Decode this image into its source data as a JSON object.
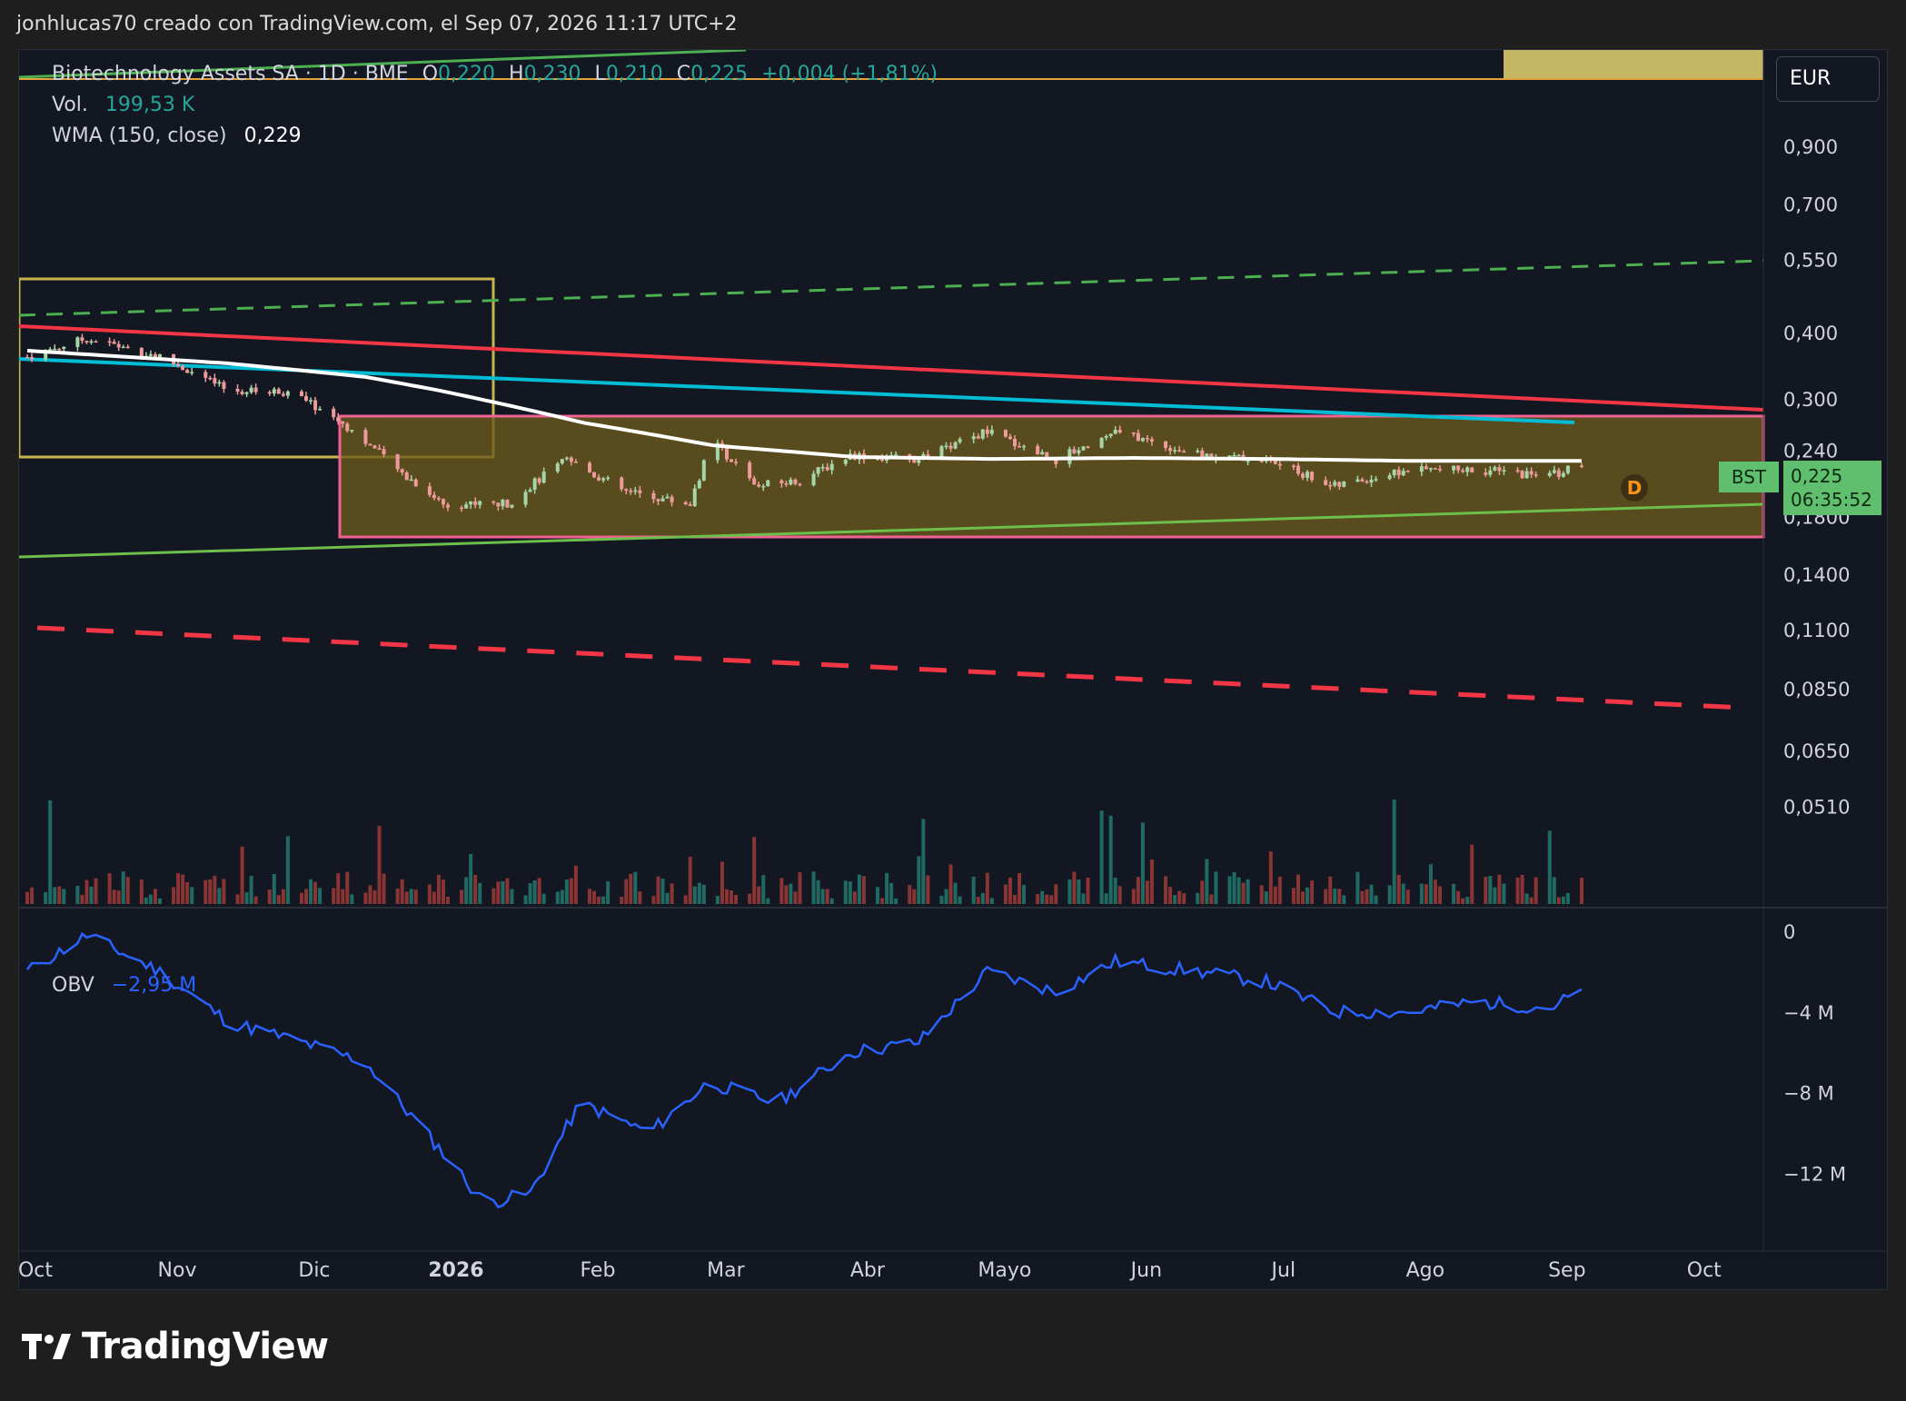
{
  "header": {
    "attribution": "jonhlucas70 creado con TradingView.com, el Sep 07, 2026 11:17 UTC+2"
  },
  "legend": {
    "symbol_line": "Biotechnology Assets SA · 1D · BME",
    "open_label": "O",
    "open": "0,220",
    "high_label": "H",
    "high": "0,230",
    "low_label": "L",
    "low": "0,210",
    "close_label": "C",
    "close": "0,225",
    "change": "+0,004 (+1,81%)",
    "vol_label": "Vol.",
    "vol_value": "199,53 K",
    "wma_label": "WMA (150, close)",
    "wma_value": "0,229"
  },
  "currency": "EUR",
  "price_tag": {
    "symbol": "BST",
    "price": "0,225",
    "countdown": "06:35:52"
  },
  "badge": "D",
  "obv": {
    "label": "OBV",
    "value": "−2,95 M"
  },
  "colors": {
    "up": "#26a69a",
    "down": "#ef5350",
    "candle_up": "#a5d6a7",
    "candle_down": "#ef9a9a",
    "wma": "#ffffff",
    "red_line": "#f23645",
    "cyan_line": "#00bcd4",
    "green_line": "#6cbf4a",
    "dashed_green": "#4caf50",
    "dashed_red": "#f23645",
    "yellow_box": "#c8b44a",
    "range_box_fill": "#6b5a1e",
    "range_box_border": "#f06292",
    "obv": "#2962ff",
    "highlight_bar": "#d8c86a"
  },
  "branding": "TradingView",
  "chart_data": {
    "type": "candlestick",
    "title": "Biotechnology Assets SA · 1D · BME",
    "y_scale": "log",
    "y_ticks": [
      "0,900",
      "0,700",
      "0,550",
      "0,400",
      "0,300",
      "0,240",
      "0,1800",
      "0,1400",
      "0,1100",
      "0,0850",
      "0,0650",
      "0,0510"
    ],
    "x_ticks": [
      "Oct",
      "Nov",
      "Dic",
      "2026",
      "Feb",
      "Mar",
      "Abr",
      "Mayo",
      "Jun",
      "Jul",
      "Ago",
      "Sep",
      "Oct"
    ],
    "close_series_approx": [
      {
        "date": "2025-10-02",
        "close": 0.36
      },
      {
        "date": "2025-10-15",
        "close": 0.39
      },
      {
        "date": "2025-10-31",
        "close": 0.36
      },
      {
        "date": "2025-11-15",
        "close": 0.31
      },
      {
        "date": "2025-11-28",
        "close": 0.31
      },
      {
        "date": "2025-12-10",
        "close": 0.27
      },
      {
        "date": "2025-12-22",
        "close": 0.22
      },
      {
        "date": "2026-01-01",
        "close": 0.19
      },
      {
        "date": "2026-01-15",
        "close": 0.19
      },
      {
        "date": "2026-01-28",
        "close": 0.23
      },
      {
        "date": "2026-02-10",
        "close": 0.2
      },
      {
        "date": "2026-02-24",
        "close": 0.19
      },
      {
        "date": "2026-03-01",
        "close": 0.25
      },
      {
        "date": "2026-03-10",
        "close": 0.205
      },
      {
        "date": "2026-03-20",
        "close": 0.21
      },
      {
        "date": "2026-03-31",
        "close": 0.235
      },
      {
        "date": "2026-04-15",
        "close": 0.23
      },
      {
        "date": "2026-04-30",
        "close": 0.26
      },
      {
        "date": "2026-05-15",
        "close": 0.23
      },
      {
        "date": "2026-05-28",
        "close": 0.26
      },
      {
        "date": "2026-06-15",
        "close": 0.235
      },
      {
        "date": "2026-06-30",
        "close": 0.23
      },
      {
        "date": "2026-07-15",
        "close": 0.205
      },
      {
        "date": "2026-07-31",
        "close": 0.22
      },
      {
        "date": "2026-08-15",
        "close": 0.22
      },
      {
        "date": "2026-08-31",
        "close": 0.215
      },
      {
        "date": "2026-09-07",
        "close": 0.225
      }
    ],
    "wma_series_approx": [
      {
        "date": "2025-10-02",
        "value": 0.37
      },
      {
        "date": "2025-11-15",
        "value": 0.35
      },
      {
        "date": "2025-12-15",
        "value": 0.33
      },
      {
        "date": "2026-01-01",
        "value": 0.31
      },
      {
        "date": "2026-02-01",
        "value": 0.27
      },
      {
        "date": "2026-03-01",
        "value": 0.245
      },
      {
        "date": "2026-04-01",
        "value": 0.233
      },
      {
        "date": "2026-05-01",
        "value": 0.231
      },
      {
        "date": "2026-06-01",
        "value": 0.232
      },
      {
        "date": "2026-07-01",
        "value": 0.231
      },
      {
        "date": "2026-08-01",
        "value": 0.229
      },
      {
        "date": "2026-09-07",
        "value": 0.229
      }
    ],
    "obv_ticks": [
      "0",
      "−4 M",
      "−8 M",
      "−12 M"
    ],
    "obv_series_approx_millions": [
      {
        "date": "2025-10-02",
        "value": -2.0
      },
      {
        "date": "2025-10-15",
        "value": -0.2
      },
      {
        "date": "2025-10-31",
        "value": -2.0
      },
      {
        "date": "2025-11-15",
        "value": -4.5
      },
      {
        "date": "2025-12-01",
        "value": -5.5
      },
      {
        "date": "2025-12-15",
        "value": -6.5
      },
      {
        "date": "2026-01-01",
        "value": -11.0
      },
      {
        "date": "2026-01-10",
        "value": -13.5
      },
      {
        "date": "2026-01-20",
        "value": -13.0
      },
      {
        "date": "2026-01-31",
        "value": -8.5
      },
      {
        "date": "2026-02-15",
        "value": -10.0
      },
      {
        "date": "2026-02-28",
        "value": -7.5
      },
      {
        "date": "2026-03-15",
        "value": -8.5
      },
      {
        "date": "2026-03-31",
        "value": -6.0
      },
      {
        "date": "2026-04-15",
        "value": -5.5
      },
      {
        "date": "2026-04-30",
        "value": -2.0
      },
      {
        "date": "2026-05-15",
        "value": -3.0
      },
      {
        "date": "2026-05-28",
        "value": -1.5
      },
      {
        "date": "2026-06-15",
        "value": -2.0
      },
      {
        "date": "2026-06-30",
        "value": -2.5
      },
      {
        "date": "2026-07-15",
        "value": -4.0
      },
      {
        "date": "2026-07-31",
        "value": -4.0
      },
      {
        "date": "2026-08-15",
        "value": -3.5
      },
      {
        "date": "2026-08-31",
        "value": -3.8
      },
      {
        "date": "2026-09-07",
        "value": -2.95
      }
    ]
  }
}
